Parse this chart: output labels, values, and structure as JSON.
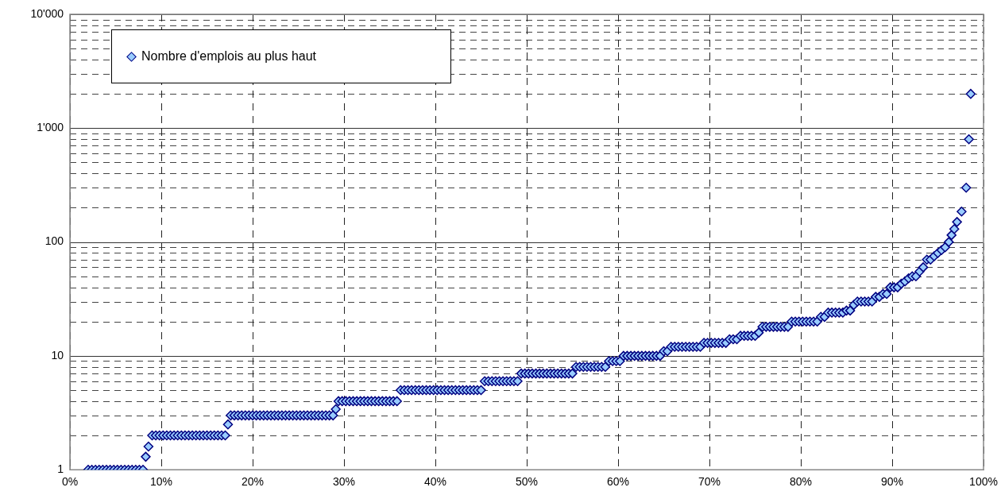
{
  "chart_data": {
    "type": "scatter",
    "log": "y",
    "grid": true,
    "legend": "top left",
    "marker": "diamond",
    "xlim": [
      0,
      100
    ],
    "xticks": [
      {
        "value": 0,
        "label": "0%"
      },
      {
        "value": 10,
        "label": "10%"
      },
      {
        "value": 20,
        "label": "20%"
      },
      {
        "value": 30,
        "label": "30%"
      },
      {
        "value": 40,
        "label": "40%"
      },
      {
        "value": 50,
        "label": "50%"
      },
      {
        "value": 60,
        "label": "60%"
      },
      {
        "value": 70,
        "label": "70%"
      },
      {
        "value": 80,
        "label": "80%"
      },
      {
        "value": 90,
        "label": "90%"
      },
      {
        "value": 100,
        "label": "100%"
      }
    ],
    "ylim": [
      1,
      10000
    ],
    "yticks": [
      1,
      {
        "value": 2,
        "label": null
      },
      {
        "value": 3,
        "label": null
      },
      {
        "value": 4,
        "label": null
      },
      {
        "value": 5,
        "label": null
      },
      {
        "value": 6,
        "label": null
      },
      {
        "value": 7,
        "label": null
      },
      {
        "value": 8,
        "label": null
      },
      {
        "value": 9,
        "label": null
      },
      10,
      {
        "value": 20,
        "label": null
      },
      {
        "value": 30,
        "label": null
      },
      {
        "value": 40,
        "label": null
      },
      {
        "value": 50,
        "label": null
      },
      {
        "value": 60,
        "label": null
      },
      {
        "value": 70,
        "label": null
      },
      {
        "value": 80,
        "label": null
      },
      {
        "value": 90,
        "label": null
      },
      100,
      {
        "value": 200,
        "label": null
      },
      {
        "value": 300,
        "label": null
      },
      {
        "value": 400,
        "label": null
      },
      {
        "value": 500,
        "label": null
      },
      {
        "value": 600,
        "label": null
      },
      {
        "value": 700,
        "label": null
      },
      {
        "value": 800,
        "label": null
      },
      {
        "value": 900,
        "label": null
      },
      {
        "value": 1000,
        "label": "1'000"
      },
      {
        "value": 2000,
        "label": null
      },
      {
        "value": 3000,
        "label": null
      },
      {
        "value": 4000,
        "label": null
      },
      {
        "value": 5000,
        "label": null
      },
      {
        "value": 6000,
        "label": null
      },
      {
        "value": 7000,
        "label": null
      },
      {
        "value": 8000,
        "label": null
      },
      {
        "value": 9000,
        "label": null
      },
      {
        "value": 10000,
        "label": "10'000"
      }
    ],
    "series": [
      {
        "name": "Nombre d'emplois au plus haut",
        "color": "#99ccff",
        "x": [
          2.0,
          2.4,
          2.8,
          3.2,
          3.6,
          4.0,
          4.4,
          4.8,
          5.2,
          5.6,
          6.0,
          6.4,
          6.8,
          7.2,
          7.6,
          8.0,
          8.3,
          8.6,
          9.0,
          9.4,
          9.8,
          10.2,
          10.6,
          11.0,
          11.4,
          11.8,
          12.2,
          12.6,
          13.0,
          13.4,
          13.8,
          14.2,
          14.6,
          15.0,
          15.4,
          15.8,
          16.2,
          16.6,
          17.0,
          17.3,
          17.6,
          18.0,
          18.4,
          18.8,
          19.2,
          19.6,
          20.0,
          20.4,
          20.8,
          21.2,
          21.6,
          22.0,
          22.4,
          22.8,
          23.2,
          23.6,
          24.0,
          24.4,
          24.8,
          25.2,
          25.6,
          26.0,
          26.4,
          26.8,
          27.2,
          27.6,
          28.0,
          28.4,
          28.8,
          29.1,
          29.4,
          29.8,
          30.2,
          30.6,
          31.0,
          31.4,
          31.8,
          32.2,
          32.6,
          33.0,
          33.4,
          33.8,
          34.2,
          34.6,
          35.0,
          35.4,
          35.8,
          36.2,
          36.6,
          37.0,
          37.4,
          37.8,
          38.2,
          38.6,
          39.0,
          39.4,
          39.8,
          40.2,
          40.6,
          41.0,
          41.4,
          41.8,
          42.2,
          42.6,
          43.0,
          43.4,
          43.8,
          44.2,
          44.6,
          45.0,
          45.4,
          45.8,
          46.2,
          46.6,
          47.0,
          47.4,
          47.8,
          48.2,
          48.6,
          49.0,
          49.4,
          49.8,
          50.2,
          50.6,
          51.0,
          51.4,
          51.8,
          52.2,
          52.6,
          53.0,
          53.4,
          53.8,
          54.2,
          54.6,
          55.0,
          55.4,
          55.8,
          56.2,
          56.6,
          57.0,
          57.4,
          57.8,
          58.2,
          58.6,
          59.0,
          59.4,
          59.8,
          60.2,
          60.6,
          61.0,
          61.4,
          61.8,
          62.2,
          62.6,
          63.0,
          63.4,
          63.8,
          64.2,
          64.6,
          65.0,
          65.4,
          65.8,
          66.2,
          66.6,
          67.0,
          67.4,
          67.8,
          68.2,
          68.6,
          69.0,
          69.4,
          69.8,
          70.2,
          70.6,
          71.0,
          71.4,
          71.8,
          72.2,
          72.6,
          73.0,
          73.4,
          73.8,
          74.2,
          74.6,
          75.0,
          75.4,
          75.8,
          76.2,
          76.6,
          77.0,
          77.4,
          77.8,
          78.2,
          78.6,
          79.0,
          79.4,
          79.8,
          80.2,
          80.6,
          81.0,
          81.4,
          81.8,
          82.2,
          82.6,
          83.0,
          83.4,
          83.8,
          84.2,
          84.6,
          85.0,
          85.4,
          85.8,
          86.2,
          86.6,
          87.0,
          87.4,
          87.8,
          88.2,
          88.6,
          89.0,
          89.4,
          89.8,
          90.2,
          90.6,
          91.0,
          91.4,
          91.8,
          92.2,
          92.6,
          93.0,
          93.4,
          93.8,
          94.2,
          94.6,
          95.0,
          95.4,
          95.8,
          96.2,
          96.5,
          96.8,
          97.1,
          97.6,
          98.1,
          98.4,
          98.6
        ],
        "values": [
          1,
          1,
          1,
          1,
          1,
          1,
          1,
          1,
          1,
          1,
          1,
          1,
          1,
          1,
          1,
          1,
          1.3,
          1.6,
          2,
          2,
          2,
          2,
          2,
          2,
          2,
          2,
          2,
          2,
          2,
          2,
          2,
          2,
          2,
          2,
          2,
          2,
          2,
          2,
          2,
          2.5,
          3,
          3,
          3,
          3,
          3,
          3,
          3,
          3,
          3,
          3,
          3,
          3,
          3,
          3,
          3,
          3,
          3,
          3,
          3,
          3,
          3,
          3,
          3,
          3,
          3,
          3,
          3,
          3,
          3,
          3.4,
          4,
          4,
          4,
          4,
          4,
          4,
          4,
          4,
          4,
          4,
          4,
          4,
          4,
          4,
          4,
          4,
          4,
          5,
          5,
          5,
          5,
          5,
          5,
          5,
          5,
          5,
          5,
          5,
          5,
          5,
          5,
          5,
          5,
          5,
          5,
          5,
          5,
          5,
          5,
          5,
          6,
          6,
          6,
          6,
          6,
          6,
          6,
          6,
          6,
          6,
          7,
          7,
          7,
          7,
          7,
          7,
          7,
          7,
          7,
          7,
          7,
          7,
          7,
          7,
          7,
          8,
          8,
          8,
          8,
          8,
          8,
          8,
          8,
          8,
          9,
          9,
          9,
          9,
          10,
          10,
          10,
          10,
          10,
          10,
          10,
          10,
          10,
          10,
          10,
          11,
          11,
          12,
          12,
          12,
          12,
          12,
          12,
          12,
          12,
          12,
          13,
          13,
          13,
          13,
          13,
          13,
          13,
          14,
          14,
          14,
          15,
          15,
          15,
          15,
          15,
          16,
          18,
          18,
          18,
          18,
          18,
          18,
          18,
          18,
          20,
          20,
          20,
          20,
          20,
          20,
          20,
          20,
          22,
          22,
          24,
          24,
          24,
          24,
          24,
          25,
          25,
          28,
          30,
          30,
          30,
          30,
          30,
          33,
          33,
          35,
          35,
          40,
          40,
          40,
          43,
          45,
          48,
          50,
          50,
          55,
          60,
          70,
          70,
          75,
          80,
          85,
          90,
          100,
          115,
          130,
          150,
          185,
          300,
          800,
          2000
        ]
      }
    ]
  }
}
